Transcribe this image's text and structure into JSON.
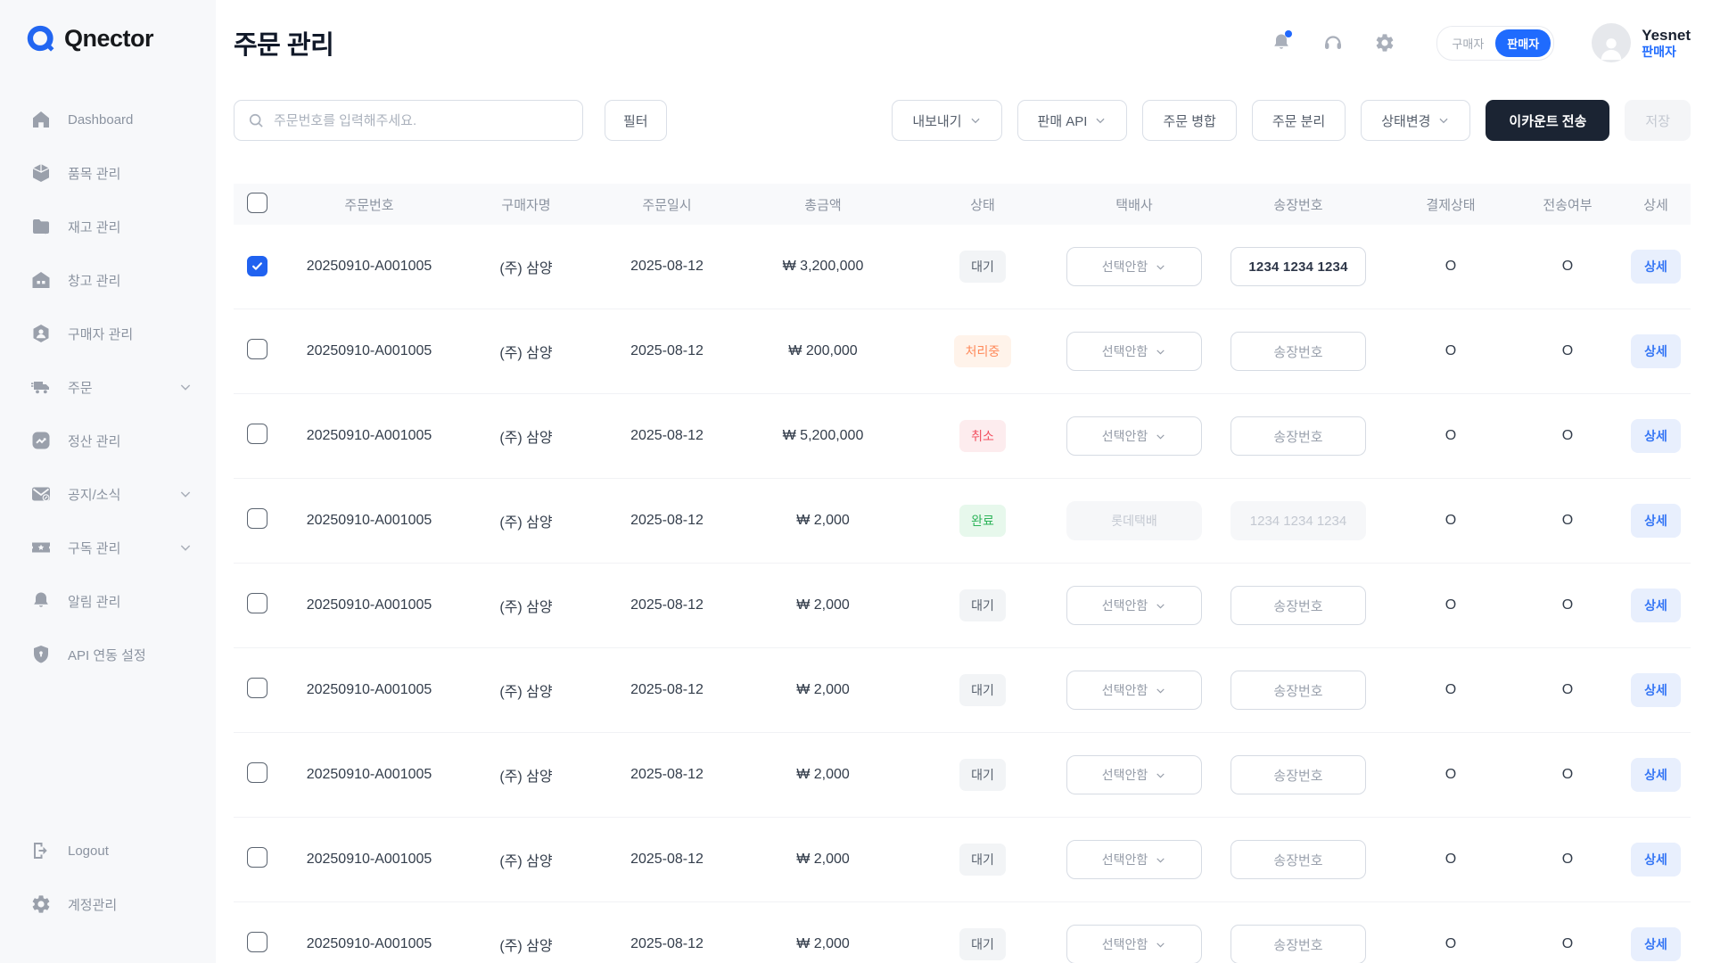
{
  "brand": {
    "name": "Qnector",
    "logo_color": "#2266f1"
  },
  "page": {
    "title": "주문 관리"
  },
  "topbar": {
    "icons": [
      {
        "id": "notifications",
        "icon": "bell",
        "dot": true
      },
      {
        "id": "support",
        "icon": "headset",
        "dot": false
      },
      {
        "id": "settings",
        "icon": "gear",
        "dot": false
      }
    ],
    "role_toggle": {
      "options": [
        "구매자",
        "판매자"
      ],
      "active": "판매자"
    },
    "user": {
      "name": "Yesnet",
      "role": "판매자"
    }
  },
  "sidebar": {
    "items": [
      {
        "id": "dashboard",
        "label": "Dashboard",
        "icon": "home",
        "chevron": false
      },
      {
        "id": "items",
        "label": "품목 관리",
        "icon": "cube",
        "chevron": false
      },
      {
        "id": "inventory",
        "label": "재고 관리",
        "icon": "folder",
        "chevron": false
      },
      {
        "id": "warehouse",
        "label": "창고 관리",
        "icon": "warehouse",
        "chevron": false
      },
      {
        "id": "buyers",
        "label": "구매자 관리",
        "icon": "user-badge",
        "chevron": false
      },
      {
        "id": "orders",
        "label": "주문",
        "icon": "truck",
        "chevron": true
      },
      {
        "id": "settlement",
        "label": "정산 관리",
        "icon": "chart",
        "chevron": false
      },
      {
        "id": "notice",
        "label": "공지/소식",
        "icon": "mail",
        "chevron": true
      },
      {
        "id": "subscription",
        "label": "구독 관리",
        "icon": "ticket",
        "chevron": true
      },
      {
        "id": "alerts",
        "label": "알림 관리",
        "icon": "bell",
        "chevron": false
      },
      {
        "id": "api-settings",
        "label": "API 연동 설정",
        "icon": "shield",
        "chevron": false
      }
    ],
    "footer": [
      {
        "id": "logout",
        "label": "Logout",
        "icon": "logout"
      },
      {
        "id": "account",
        "label": "계정관리",
        "icon": "gear"
      }
    ]
  },
  "toolbar": {
    "search_placeholder": "주문번호를 입력해주세요.",
    "filter_label": "필터",
    "actions": [
      {
        "id": "export",
        "label": "내보내기",
        "chevron": true,
        "variant": "outline"
      },
      {
        "id": "sales-api",
        "label": "판매 API",
        "chevron": true,
        "variant": "outline"
      },
      {
        "id": "merge-orders",
        "label": "주문 병합",
        "chevron": false,
        "variant": "outline"
      },
      {
        "id": "split-orders",
        "label": "주문 분리",
        "chevron": false,
        "variant": "outline"
      },
      {
        "id": "status-change",
        "label": "상태변경",
        "chevron": true,
        "variant": "outline"
      },
      {
        "id": "ecount-send",
        "label": "이카운트 전송",
        "chevron": false,
        "variant": "dark"
      },
      {
        "id": "save",
        "label": "저장",
        "chevron": false,
        "variant": "disabled"
      }
    ]
  },
  "table": {
    "headers": [
      "주문번호",
      "구매자명",
      "주문일시",
      "총금액",
      "상태",
      "택배사",
      "송장번호",
      "결제상태",
      "전송여부",
      "상세"
    ],
    "detail_label": "상세",
    "status_colors": {
      "waiting": {
        "bg": "#f2f4f6",
        "text": "#57606d"
      },
      "processing": {
        "bg": "#fff3ea",
        "text": "#ff8a5b"
      },
      "canceled": {
        "bg": "#fdecee",
        "text": "#f25060"
      },
      "done": {
        "bg": "#e7f8ec",
        "text": "#2eb45a"
      }
    },
    "rows": [
      {
        "checked": true,
        "order_no": "20250910-A001005",
        "buyer": "(주) 삼양",
        "date": "2025-08-12",
        "amount": "₩ 3,200,000",
        "status": "대기",
        "status_type": "waiting",
        "courier": "선택안함",
        "courier_disabled": false,
        "invoice": "1234 1234 1234",
        "invoice_mode": "value",
        "payment": "O",
        "transfer": "O"
      },
      {
        "checked": false,
        "order_no": "20250910-A001005",
        "buyer": "(주) 삼양",
        "date": "2025-08-12",
        "amount": "₩ 200,000",
        "status": "처리중",
        "status_type": "processing",
        "courier": "선택안함",
        "courier_disabled": false,
        "invoice": "송장번호",
        "invoice_mode": "placeholder",
        "payment": "O",
        "transfer": "O"
      },
      {
        "checked": false,
        "order_no": "20250910-A001005",
        "buyer": "(주) 삼양",
        "date": "2025-08-12",
        "amount": "₩ 5,200,000",
        "status": "취소",
        "status_type": "canceled",
        "courier": "선택안함",
        "courier_disabled": false,
        "invoice": "송장번호",
        "invoice_mode": "placeholder",
        "payment": "O",
        "transfer": "O"
      },
      {
        "checked": false,
        "order_no": "20250910-A001005",
        "buyer": "(주) 삼양",
        "date": "2025-08-12",
        "amount": "₩ 2,000",
        "status": "완료",
        "status_type": "done",
        "courier": "롯데택배",
        "courier_disabled": true,
        "invoice": "1234 1234 1234",
        "invoice_mode": "disabled",
        "payment": "O",
        "transfer": "O"
      },
      {
        "checked": false,
        "order_no": "20250910-A001005",
        "buyer": "(주) 삼양",
        "date": "2025-08-12",
        "amount": "₩ 2,000",
        "status": "대기",
        "status_type": "waiting",
        "courier": "선택안함",
        "courier_disabled": false,
        "invoice": "송장번호",
        "invoice_mode": "placeholder",
        "payment": "O",
        "transfer": "O"
      },
      {
        "checked": false,
        "order_no": "20250910-A001005",
        "buyer": "(주) 삼양",
        "date": "2025-08-12",
        "amount": "₩ 2,000",
        "status": "대기",
        "status_type": "waiting",
        "courier": "선택안함",
        "courier_disabled": false,
        "invoice": "송장번호",
        "invoice_mode": "placeholder",
        "payment": "O",
        "transfer": "O"
      },
      {
        "checked": false,
        "order_no": "20250910-A001005",
        "buyer": "(주) 삼양",
        "date": "2025-08-12",
        "amount": "₩ 2,000",
        "status": "대기",
        "status_type": "waiting",
        "courier": "선택안함",
        "courier_disabled": false,
        "invoice": "송장번호",
        "invoice_mode": "placeholder",
        "payment": "O",
        "transfer": "O"
      },
      {
        "checked": false,
        "order_no": "20250910-A001005",
        "buyer": "(주) 삼양",
        "date": "2025-08-12",
        "amount": "₩ 2,000",
        "status": "대기",
        "status_type": "waiting",
        "courier": "선택안함",
        "courier_disabled": false,
        "invoice": "송장번호",
        "invoice_mode": "placeholder",
        "payment": "O",
        "transfer": "O"
      },
      {
        "checked": false,
        "order_no": "20250910-A001005",
        "buyer": "(주) 삼양",
        "date": "2025-08-12",
        "amount": "₩ 2,000",
        "status": "대기",
        "status_type": "waiting",
        "courier": "선택안함",
        "courier_disabled": false,
        "invoice": "송장번호",
        "invoice_mode": "placeholder",
        "payment": "O",
        "transfer": "O"
      }
    ]
  }
}
